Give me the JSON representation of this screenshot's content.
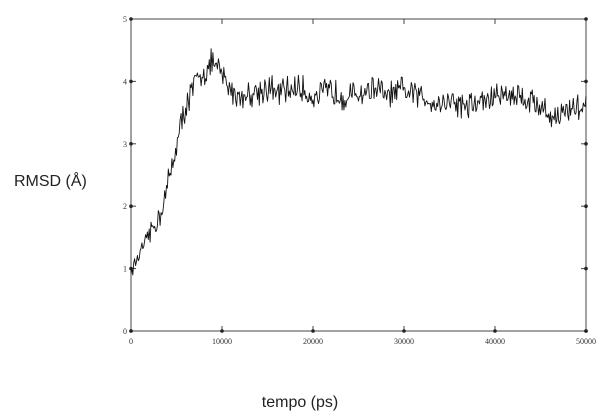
{
  "chart_data": {
    "type": "line",
    "xlabel": "tempo (ps)",
    "ylabel": "RMSD (Å)",
    "xlim": [
      0,
      50000
    ],
    "ylim": [
      0,
      5
    ],
    "x_ticks": [
      0,
      10000,
      20000,
      30000,
      40000,
      50000
    ],
    "x_tick_labels": [
      "0",
      "10000",
      "20000",
      "30000",
      "40000",
      "50000"
    ],
    "y_ticks": [
      0,
      1,
      2,
      3,
      4,
      5
    ],
    "y_tick_labels": [
      "0",
      "1",
      "2",
      "3",
      "4",
      "5"
    ],
    "grid": false,
    "legend": "none",
    "line_color": "#111111",
    "series": [
      {
        "x": [
          0,
          1000,
          2000,
          3000,
          4000,
          5000,
          6000,
          7000,
          8000,
          9000,
          10000,
          11000,
          12000,
          13000,
          14000,
          15000,
          16000,
          17000,
          18000,
          19000,
          20000,
          21000,
          22000,
          23000,
          24000,
          25000,
          26000,
          27000,
          28000,
          29000,
          30000,
          31000,
          32000,
          33000,
          34000,
          35000,
          36000,
          37000,
          38000,
          39000,
          40000,
          41000,
          42000,
          43000,
          44000,
          45000,
          46000,
          47000,
          48000,
          49000,
          50000
        ],
        "values": [
          0.95,
          1.25,
          1.55,
          1.8,
          2.3,
          3.0,
          3.6,
          3.95,
          4.15,
          4.3,
          4.1,
          3.85,
          3.75,
          3.8,
          3.85,
          3.9,
          3.8,
          3.85,
          3.9,
          3.85,
          3.75,
          3.8,
          3.85,
          3.8,
          3.75,
          3.8,
          3.85,
          3.9,
          3.75,
          3.8,
          3.85,
          3.8,
          3.75,
          3.7,
          3.65,
          3.7,
          3.65,
          3.6,
          3.65,
          3.7,
          3.75,
          3.8,
          3.8,
          3.75,
          3.7,
          3.6,
          3.45,
          3.45,
          3.55,
          3.6,
          3.6
        ]
      }
    ]
  }
}
